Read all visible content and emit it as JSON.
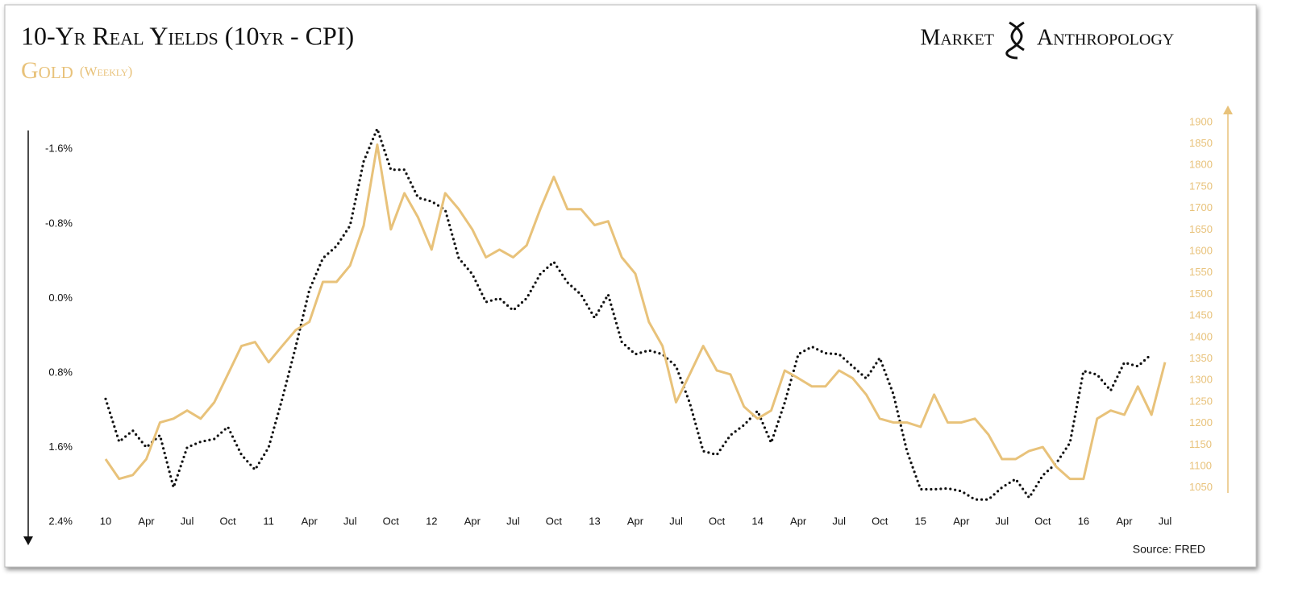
{
  "chart_data": {
    "type": "line",
    "brand": [
      "Market",
      "Anthropology"
    ],
    "subtitle": "(Weekly)",
    "source": "Source: FRED",
    "categories": [
      "10",
      null,
      null,
      "Apr",
      null,
      null,
      "Jul",
      null,
      null,
      "Oct",
      null,
      null,
      "11",
      null,
      null,
      "Apr",
      null,
      null,
      "Jul",
      null,
      null,
      "Oct",
      null,
      null,
      "12",
      null,
      null,
      "Apr",
      null,
      null,
      "Jul",
      null,
      null,
      "Oct",
      null,
      null,
      "13",
      null,
      null,
      "Apr",
      null,
      null,
      "Jul",
      null,
      null,
      "Oct",
      null,
      null,
      "14",
      null,
      null,
      "Apr",
      null,
      null,
      "Jul",
      null,
      null,
      "Oct",
      null,
      null,
      "15",
      null,
      null,
      "Apr",
      null,
      null,
      "Jul",
      null,
      null,
      "Oct",
      null,
      null,
      "16",
      null,
      null,
      "Apr",
      null,
      null,
      "Jul"
    ],
    "series": [
      {
        "name": "10-Yr Real Yields (10yr - CPI)",
        "color": "#111111",
        "line_style": "dotted",
        "axis": "y",
        "values": [
          1.08,
          1.54,
          1.42,
          1.6,
          1.47,
          2.03,
          1.6,
          1.54,
          1.51,
          1.38,
          1.68,
          1.84,
          1.6,
          1.08,
          0.52,
          -0.09,
          -0.43,
          -0.56,
          -0.78,
          -1.47,
          -1.82,
          -1.38,
          -1.38,
          -1.08,
          -1.04,
          -0.95,
          -0.43,
          -0.26,
          0.04,
          0.0,
          0.13,
          0.0,
          -0.26,
          -0.39,
          -0.17,
          -0.04,
          0.21,
          -0.04,
          0.47,
          0.6,
          0.56,
          0.6,
          0.73,
          1.12,
          1.64,
          1.68,
          1.47,
          1.36,
          1.21,
          1.55,
          1.12,
          0.6,
          0.52,
          0.59,
          0.6,
          0.73,
          0.86,
          0.64,
          1.03,
          1.64,
          2.05,
          2.05,
          2.04,
          2.07,
          2.16,
          2.16,
          2.03,
          1.94,
          2.14,
          1.9,
          1.77,
          1.55,
          0.78,
          0.82,
          0.99,
          0.69,
          0.73,
          0.6,
          null
        ]
      },
      {
        "name": "Gold",
        "color": "#e8c27a",
        "line_style": "solid",
        "axis": "y2",
        "values": [
          1117,
          1071,
          1080,
          1117,
          1202,
          1211,
          1230,
          1211,
          1249,
          1314,
          1380,
          1389,
          1342,
          1380,
          1417,
          1436,
          1529,
          1529,
          1567,
          1660,
          1848,
          1651,
          1735,
          1679,
          1604,
          1735,
          1698,
          1651,
          1586,
          1604,
          1586,
          1614,
          1698,
          1773,
          1698,
          1698,
          1661,
          1670,
          1586,
          1548,
          1436,
          1380,
          1249,
          1314,
          1380,
          1323,
          1314,
          1239,
          1211,
          1230,
          1323,
          1305,
          1286,
          1286,
          1323,
          1305,
          1267,
          1211,
          1202,
          1202,
          1192,
          1267,
          1202,
          1202,
          1211,
          1174,
          1117,
          1117,
          1136,
          1145,
          1099,
          1071,
          1071,
          1211,
          1230,
          1220,
          1286,
          1220,
          1342
        ]
      }
    ],
    "ylim": [
      2.4,
      -2.0
    ],
    "yticks": [
      {
        "value": -1.6,
        "label": "-1.6%"
      },
      {
        "value": -0.8,
        "label": "-0.8%"
      },
      {
        "value": 0.0,
        "label": "0.0%"
      },
      {
        "value": 0.8,
        "label": "0.8%"
      },
      {
        "value": 1.6,
        "label": "1.6%"
      },
      {
        "value": 2.4,
        "label": "2.4%"
      }
    ],
    "y2lim": [
      971,
      1924
    ],
    "y2ticks": [
      1050,
      1100,
      1150,
      1200,
      1250,
      1300,
      1350,
      1400,
      1450,
      1500,
      1550,
      1600,
      1650,
      1700,
      1750,
      1800,
      1850,
      1900
    ],
    "grid": false
  }
}
